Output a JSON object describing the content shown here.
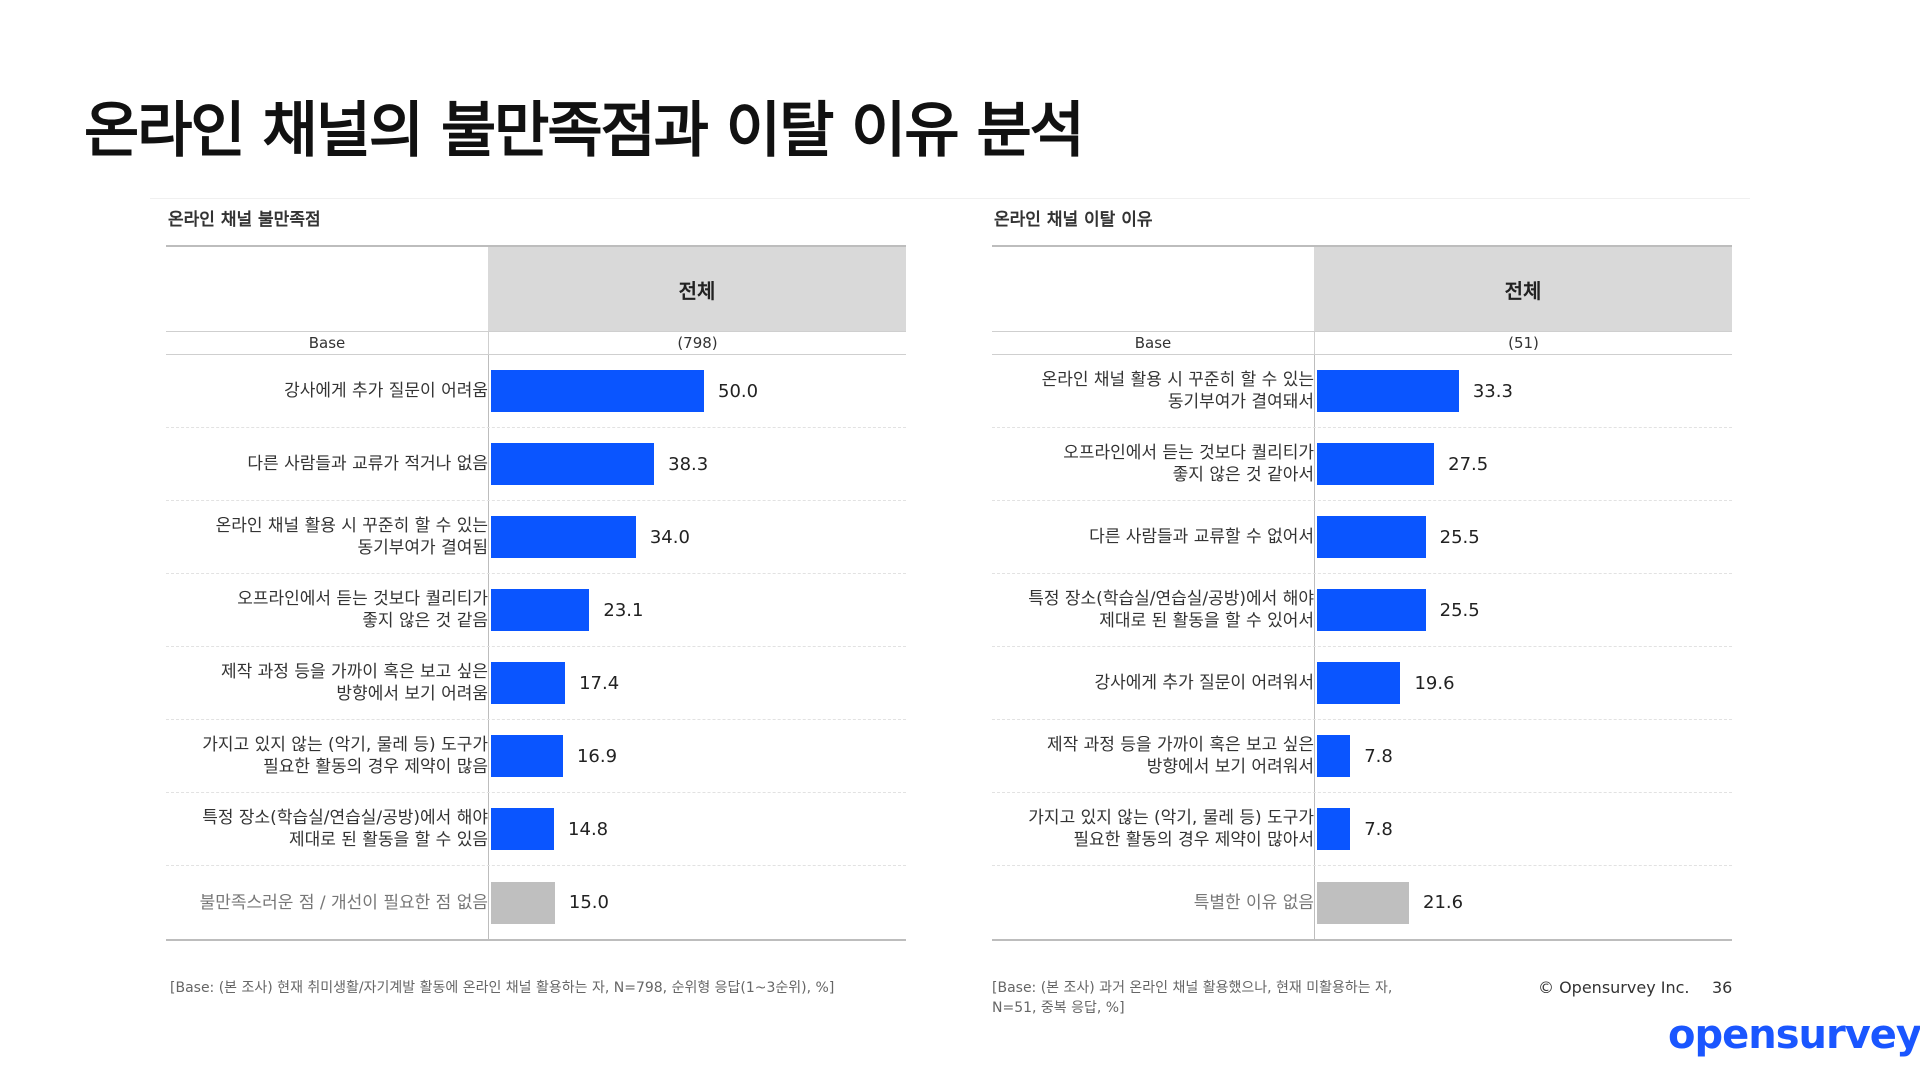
{
  "page_title": "온라인 채널의 불만족점과 이탈 이유 분석",
  "colors": {
    "bar": "#0a55ff",
    "bar_muted": "#bfbfbf",
    "logo": "#1a56ff"
  },
  "chart_data": [
    {
      "type": "bar",
      "orientation": "horizontal",
      "title": "온라인 채널 불만족점",
      "column_header": "전체",
      "base_label": "Base",
      "base_value": "(798)",
      "xlim": [
        0,
        100
      ],
      "categories": [
        "강사에게 추가 질문이 어려움",
        "다른 사람들과 교류가 적거나 없음",
        "온라인 채널 활용 시 꾸준히 할 수 있는\n동기부여가 결여됨",
        "오프라인에서 듣는 것보다 퀄리티가\n좋지 않은 것 같음",
        "제작 과정 등을 가까이 혹은 보고 싶은\n방향에서 보기 어려움",
        "가지고 있지 않는 (악기, 물레 등) 도구가\n필요한 활동의 경우 제약이 많음",
        "특정 장소(학습실/연습실/공방)에서 해야\n제대로 된 활동을 할 수 있음",
        "불만족스러운 점 / 개선이 필요한 점 없음"
      ],
      "values": [
        50.0,
        38.3,
        34.0,
        23.1,
        17.4,
        16.9,
        14.8,
        15.0
      ],
      "value_labels": [
        "50.0",
        "38.3",
        "34.0",
        "23.1",
        "17.4",
        "16.9",
        "14.8",
        "15.0"
      ],
      "muted": [
        false,
        false,
        false,
        false,
        false,
        false,
        false,
        true
      ],
      "footnote": "[Base: (본 조사) 현재 취미생활/자기계발 활동에 온라인 채널 활용하는 자, N=798, 순위형 응답(1~3순위), %]"
    },
    {
      "type": "bar",
      "orientation": "horizontal",
      "title": "온라인 채널 이탈 이유",
      "column_header": "전체",
      "base_label": "Base",
      "base_value": "(51)",
      "xlim": [
        0,
        100
      ],
      "categories": [
        "온라인 채널 활용 시 꾸준히 할 수 있는\n동기부여가 결여돼서",
        "오프라인에서 듣는 것보다 퀄리티가\n좋지 않은 것 같아서",
        "다른 사람들과 교류할 수 없어서",
        "특정 장소(학습실/연습실/공방)에서 해야\n제대로 된 활동을 할 수 있어서",
        "강사에게 추가 질문이 어려워서",
        "제작 과정 등을 가까이 혹은 보고 싶은\n방향에서 보기 어려워서",
        "가지고 있지 않는 (악기, 물레 등) 도구가\n필요한 활동의 경우 제약이 많아서",
        "특별한 이유 없음"
      ],
      "values": [
        33.3,
        27.5,
        25.5,
        25.5,
        19.6,
        7.8,
        7.8,
        21.6
      ],
      "value_labels": [
        "33.3",
        "27.5",
        "25.5",
        "25.5",
        "19.6",
        "7.8",
        "7.8",
        "21.6"
      ],
      "muted": [
        false,
        false,
        false,
        false,
        false,
        false,
        false,
        true
      ],
      "footnote": "[Base: (본 조사) 과거 온라인 채널 활용했으나, 현재 미활용하는 자,\n N=51, 중복 응답, %]"
    }
  ],
  "footer": {
    "copyright": "© Opensurvey Inc.",
    "page_number": "36",
    "logo_text": "opensurvey"
  }
}
